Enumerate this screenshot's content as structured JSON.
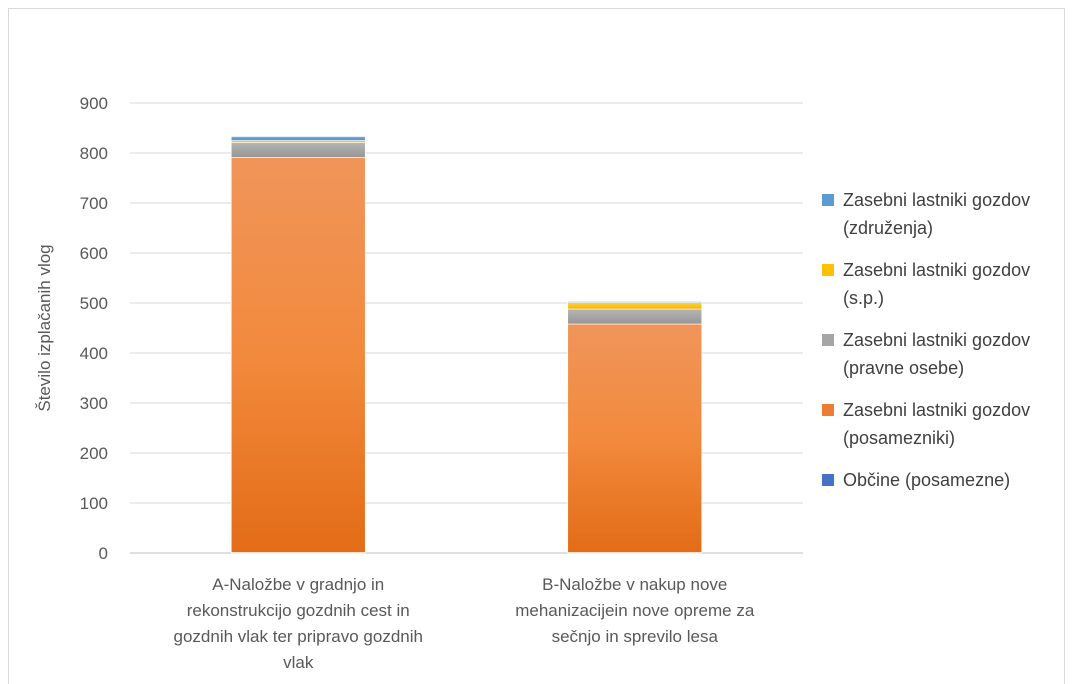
{
  "chart_data": {
    "type": "bar",
    "stacked": true,
    "title": "",
    "xlabel": "",
    "ylabel": "Število izplačanih vlog",
    "ylim": [
      0,
      900
    ],
    "yticks": [
      0,
      100,
      200,
      300,
      400,
      500,
      600,
      700,
      800,
      900
    ],
    "grid": true,
    "legend_position": "right",
    "categories": [
      [
        "A-Naložbe v gradnjo in",
        "rekonstrukcijo gozdnih cest in",
        "gozdnih vlak ter pripravo gozdnih",
        "vlak"
      ],
      [
        "B-Naložbe v nakup nove",
        "mehanizacijein nove opreme za",
        "sečnjo in sprevilo lesa"
      ]
    ],
    "series": [
      {
        "name": [
          "Občine (posamezne)"
        ],
        "color": "#4472c4",
        "values": [
          1,
          1
        ]
      },
      {
        "name": [
          "Zasebni lastniki gozdov",
          "(posamezniki)"
        ],
        "color": "#ed7d31",
        "values": [
          790,
          457
        ]
      },
      {
        "name": [
          "Zasebni lastniki gozdov",
          "(pravne osebe)"
        ],
        "color": "#a5a5a5",
        "values": [
          30,
          30
        ]
      },
      {
        "name": [
          "Zasebni lastniki gozdov",
          "(s.p.)"
        ],
        "color": "#ffc000",
        "values": [
          4,
          13
        ]
      },
      {
        "name": [
          "Zasebni lastniki gozdov",
          "(združenja)"
        ],
        "color": "#5b9bd5",
        "values": [
          8,
          2
        ]
      }
    ]
  }
}
